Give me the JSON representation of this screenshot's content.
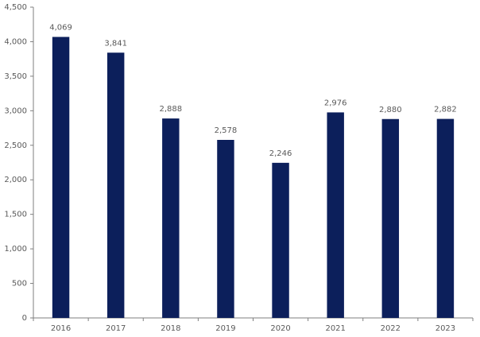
{
  "chart_data": {
    "type": "bar",
    "categories": [
      "2016",
      "2017",
      "2018",
      "2019",
      "2020",
      "2021",
      "2022",
      "2023"
    ],
    "values": [
      4069,
      3841,
      2888,
      2578,
      2246,
      2976,
      2880,
      2882
    ],
    "value_labels": [
      "4,069",
      "3,841",
      "2,888",
      "2,578",
      "2,246",
      "2,976",
      "2,880",
      "2,882"
    ],
    "color": "#0c1f5b",
    "ylim": [
      0,
      4500
    ],
    "yticks": [
      0,
      500,
      {
        "value": 1000,
        "label": "1,000"
      },
      {
        "value": 1500,
        "label": "1,500"
      },
      {
        "value": 2000,
        "label": "2,000"
      },
      {
        "value": 2500,
        "label": "2,500"
      },
      {
        "value": 3000,
        "label": "3,000"
      },
      {
        "value": 3500,
        "label": "3,500"
      },
      {
        "value": 4000,
        "label": "4,000"
      },
      {
        "value": 4500,
        "label": "4,500"
      }
    ],
    "grid": false
  }
}
